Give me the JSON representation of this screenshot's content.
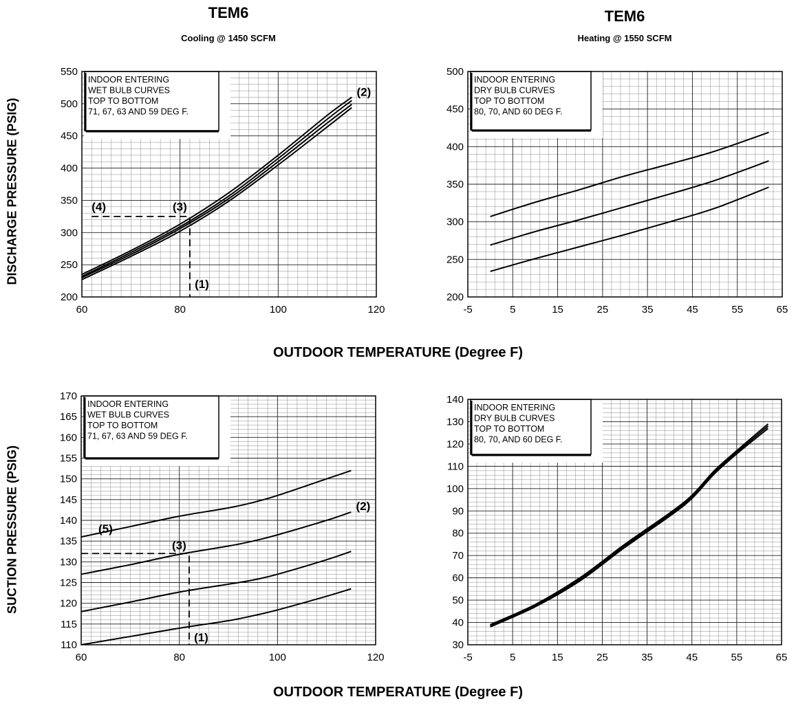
{
  "page": {
    "cooling_title": "TEM6",
    "cooling_subtitle": "Cooling @ 1450 SCFM",
    "heating_title": "TEM6",
    "heating_subtitle": "Heating @ 1550 SCFM",
    "x_axis_title_top": "OUTDOOR TEMPERATURE (Degree F)",
    "x_axis_title_bottom": "OUTDOOR TEMPERATURE (Degree F)",
    "y_axis_title_top": "DISCHARGE PRESSURE (PSIG)",
    "y_axis_title_bottom": "SUCTION PRESSURE (PSIG)"
  },
  "chart_data": [
    {
      "id": "cooling-discharge",
      "type": "line",
      "xlim": [
        60,
        120
      ],
      "ylim": [
        200,
        550
      ],
      "x_ticks": [
        60,
        80,
        100,
        120
      ],
      "y_ticks": [
        200,
        250,
        300,
        350,
        400,
        450,
        500,
        550
      ],
      "minor_x_step": 2,
      "minor_y_step": 10,
      "grid": true,
      "note_lines": [
        "INDOOR ENTERING",
        "WET BULB CURVES",
        "TOP TO BOTTOM",
        "71, 67, 63 AND 59 DEG F."
      ],
      "series": [
        {
          "x": [
            60,
            70,
            80,
            90,
            100,
            110,
            115
          ],
          "y": [
            235,
            272,
            313,
            362,
            420,
            482,
            510
          ]
        },
        {
          "x": [
            60,
            70,
            80,
            90,
            100,
            110,
            115
          ],
          "y": [
            232,
            269,
            309,
            357,
            415,
            476,
            505
          ]
        },
        {
          "x": [
            60,
            70,
            80,
            90,
            100,
            110,
            115
          ],
          "y": [
            230,
            266,
            306,
            353,
            410,
            470,
            499
          ]
        },
        {
          "x": [
            60,
            70,
            80,
            90,
            100,
            110,
            115
          ],
          "y": [
            227,
            263,
            302,
            349,
            405,
            464,
            494
          ]
        }
      ],
      "example_path": [
        [
          62,
          325
        ],
        [
          82,
          325
        ],
        [
          82,
          200
        ]
      ],
      "annotations": [
        {
          "text": "(1)",
          "x": 83,
          "y": 214
        },
        {
          "text": "(2)",
          "x": 116,
          "y": 512
        },
        {
          "text": "(3)",
          "x": 78.5,
          "y": 334
        },
        {
          "text": "(4)",
          "x": 62,
          "y": 334
        }
      ]
    },
    {
      "id": "heating-discharge",
      "type": "line",
      "xlim": [
        -5,
        65
      ],
      "ylim": [
        200,
        500
      ],
      "x_ticks": [
        -5,
        5,
        15,
        25,
        35,
        45,
        55,
        65
      ],
      "y_ticks": [
        200,
        250,
        300,
        350,
        400,
        450,
        500
      ],
      "minor_x_step": 2,
      "minor_y_step": 10,
      "grid": true,
      "note_lines": [
        "INDOOR ENTERING",
        "DRY BULB CURVES",
        "TOP TO BOTTOM",
        "80, 70, AND 60 DEG F."
      ],
      "series": [
        {
          "x": [
            0,
            10,
            20,
            30,
            40,
            50,
            62
          ],
          "y": [
            307,
            326,
            343,
            361,
            377,
            394,
            419
          ]
        },
        {
          "x": [
            0,
            10,
            20,
            30,
            40,
            50,
            62
          ],
          "y": [
            269,
            287,
            303,
            320,
            337,
            355,
            381
          ]
        },
        {
          "x": [
            0,
            10,
            20,
            30,
            40,
            50,
            62
          ],
          "y": [
            234,
            251,
            267,
            283,
            300,
            318,
            346
          ]
        }
      ],
      "example_path": [],
      "annotations": []
    },
    {
      "id": "cooling-suction",
      "type": "line",
      "xlim": [
        60,
        120
      ],
      "ylim": [
        110,
        170
      ],
      "x_ticks": [
        60,
        80,
        100,
        120
      ],
      "y_ticks": [
        110,
        115,
        120,
        125,
        130,
        135,
        140,
        145,
        150,
        155,
        160,
        165,
        170
      ],
      "minor_x_step": 2,
      "minor_y_step": 1,
      "grid": true,
      "note_lines": [
        "INDOOR ENTERING",
        "WET BULB CURVES",
        "TOP TO BOTTOM",
        "71, 67, 63 AND 59 DEG F."
      ],
      "series": [
        {
          "x": [
            60,
            70,
            80,
            90,
            95,
            100,
            110,
            115
          ],
          "y": [
            136,
            138.5,
            141,
            143,
            144.3,
            146,
            150,
            152
          ]
        },
        {
          "x": [
            60,
            70,
            80,
            90,
            95,
            100,
            110,
            115
          ],
          "y": [
            127,
            129.3,
            131.8,
            133.8,
            135,
            136.5,
            140,
            142
          ]
        },
        {
          "x": [
            60,
            70,
            80,
            90,
            95,
            100,
            110,
            115
          ],
          "y": [
            118,
            120.3,
            122.7,
            124.6,
            125.6,
            127,
            130.5,
            132.5
          ]
        },
        {
          "x": [
            60,
            70,
            80,
            90,
            95,
            100,
            110,
            115
          ],
          "y": [
            110,
            112,
            114,
            115.8,
            117,
            118.4,
            121.7,
            123.5
          ]
        }
      ],
      "example_path": [
        [
          60,
          132
        ],
        [
          82,
          132
        ],
        [
          82,
          110
        ]
      ],
      "annotations": [
        {
          "text": "(1)",
          "x": 83,
          "y": 110.8
        },
        {
          "text": "(2)",
          "x": 116,
          "y": 142.5
        },
        {
          "text": "(3)",
          "x": 78.5,
          "y": 133
        },
        {
          "text": "(5)",
          "x": 63.5,
          "y": 137
        }
      ]
    },
    {
      "id": "heating-suction",
      "type": "line",
      "xlim": [
        -5,
        65
      ],
      "ylim": [
        30,
        140
      ],
      "x_ticks": [
        -5,
        5,
        15,
        25,
        35,
        45,
        55,
        65
      ],
      "y_ticks": [
        30,
        40,
        50,
        60,
        70,
        80,
        90,
        100,
        110,
        120,
        130,
        140
      ],
      "minor_x_step": 2,
      "minor_y_step": 2,
      "grid": true,
      "note_lines": [
        "INDOOR ENTERING",
        "DRY BULB CURVES",
        "TOP TO BOTTOM",
        "80, 70, AND 60 DEG F."
      ],
      "series": [
        {
          "x": [
            0,
            10,
            20,
            30,
            40,
            45,
            50,
            55,
            62
          ],
          "y": [
            39,
            48,
            60,
            75,
            89,
            97,
            108,
            117,
            129
          ]
        },
        {
          "x": [
            0,
            10,
            20,
            30,
            40,
            45,
            50,
            55,
            62
          ],
          "y": [
            38.5,
            47.5,
            59.3,
            74.3,
            88.3,
            96.3,
            107.3,
            116.3,
            128
          ]
        },
        {
          "x": [
            0,
            10,
            20,
            30,
            40,
            45,
            50,
            55,
            62
          ],
          "y": [
            38,
            47,
            58.6,
            73.6,
            87.6,
            95.6,
            106.6,
            115.6,
            127
          ]
        }
      ],
      "example_path": [],
      "annotations": []
    }
  ]
}
